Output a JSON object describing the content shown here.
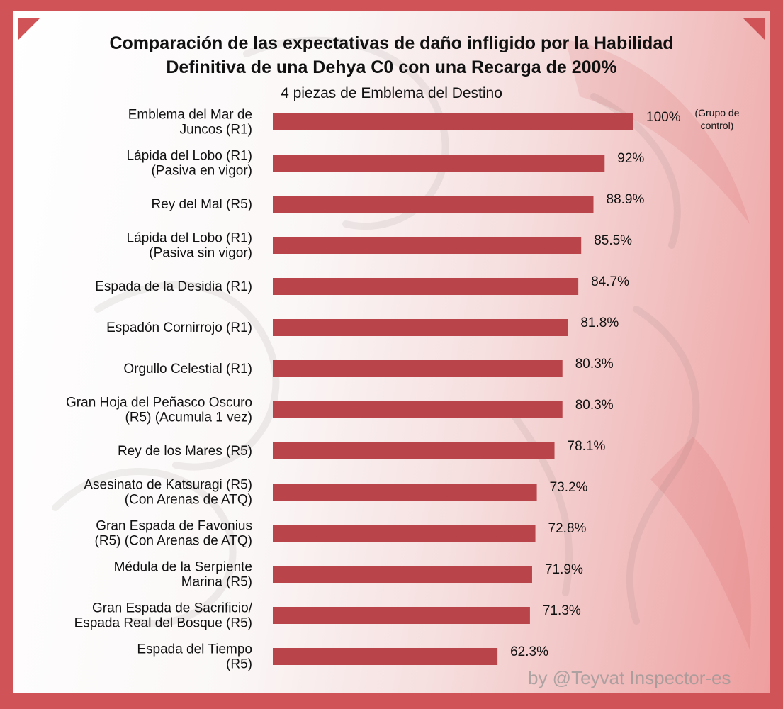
{
  "title": "Comparación de las expectativas de daño infligido por la Habilidad\nDefinitiva de una Dehya C0 con una Recarga de 200%",
  "subtitle": "4 piezas de Emblema del Destino",
  "credit": "by @Teyvat Inspector-es",
  "colors": {
    "frame": "#d05457",
    "bar": "#b9444a"
  },
  "chart_data": {
    "type": "bar",
    "orientation": "horizontal",
    "title": "Comparación de las expectativas de daño infligido por la Habilidad Definitiva de una Dehya C0 con una Recarga de 200%",
    "subtitle": "4 piezas de Emblema del Destino",
    "grid": false,
    "categories": [
      [
        "Emblema del Mar de",
        "Juncos (R1)"
      ],
      [
        "Lápida del Lobo (R1)",
        "(Pasiva en vigor)"
      ],
      [
        "Rey del Mal (R5)"
      ],
      [
        "Lápida del Lobo (R1)",
        "(Pasiva sin vigor)"
      ],
      [
        "Espada de la Desidia (R1)"
      ],
      [
        "Espadón Cornirrojo (R1)"
      ],
      [
        "Orgullo Celestial (R1)"
      ],
      [
        "Gran Hoja del Peñasco Oscuro",
        "(R5) (Acumula 1 vez)"
      ],
      [
        "Rey de los Mares (R5)"
      ],
      [
        "Asesinato de Katsuragi (R5)",
        "(Con Arenas de ATQ)"
      ],
      [
        "Gran Espada de Favonius",
        "(R5) (Con Arenas de ATQ)"
      ],
      [
        "Médula de la Serpiente",
        "Marina (R5)"
      ],
      [
        "Gran Espada de Sacrificio/",
        "Espada Real del Bosque (R5)"
      ],
      [
        "Espada del Tiempo",
        "(R5)"
      ]
    ],
    "values": [
      100,
      92,
      88.9,
      85.5,
      84.7,
      81.8,
      80.3,
      80.3,
      78.1,
      73.2,
      72.8,
      71.9,
      71.3,
      62.3
    ],
    "value_labels": [
      "100%",
      "92%",
      "88.9%",
      "85.5%",
      "84.7%",
      "81.8%",
      "80.3%",
      "80.3%",
      "78.1%",
      "73.2%",
      "72.8%",
      "71.9%",
      "71.3%",
      "62.3%"
    ],
    "annotations": [
      {
        "index": 0,
        "text": [
          "(Grupo de",
          "control)"
        ]
      }
    ],
    "xlim": [
      0,
      100
    ]
  }
}
